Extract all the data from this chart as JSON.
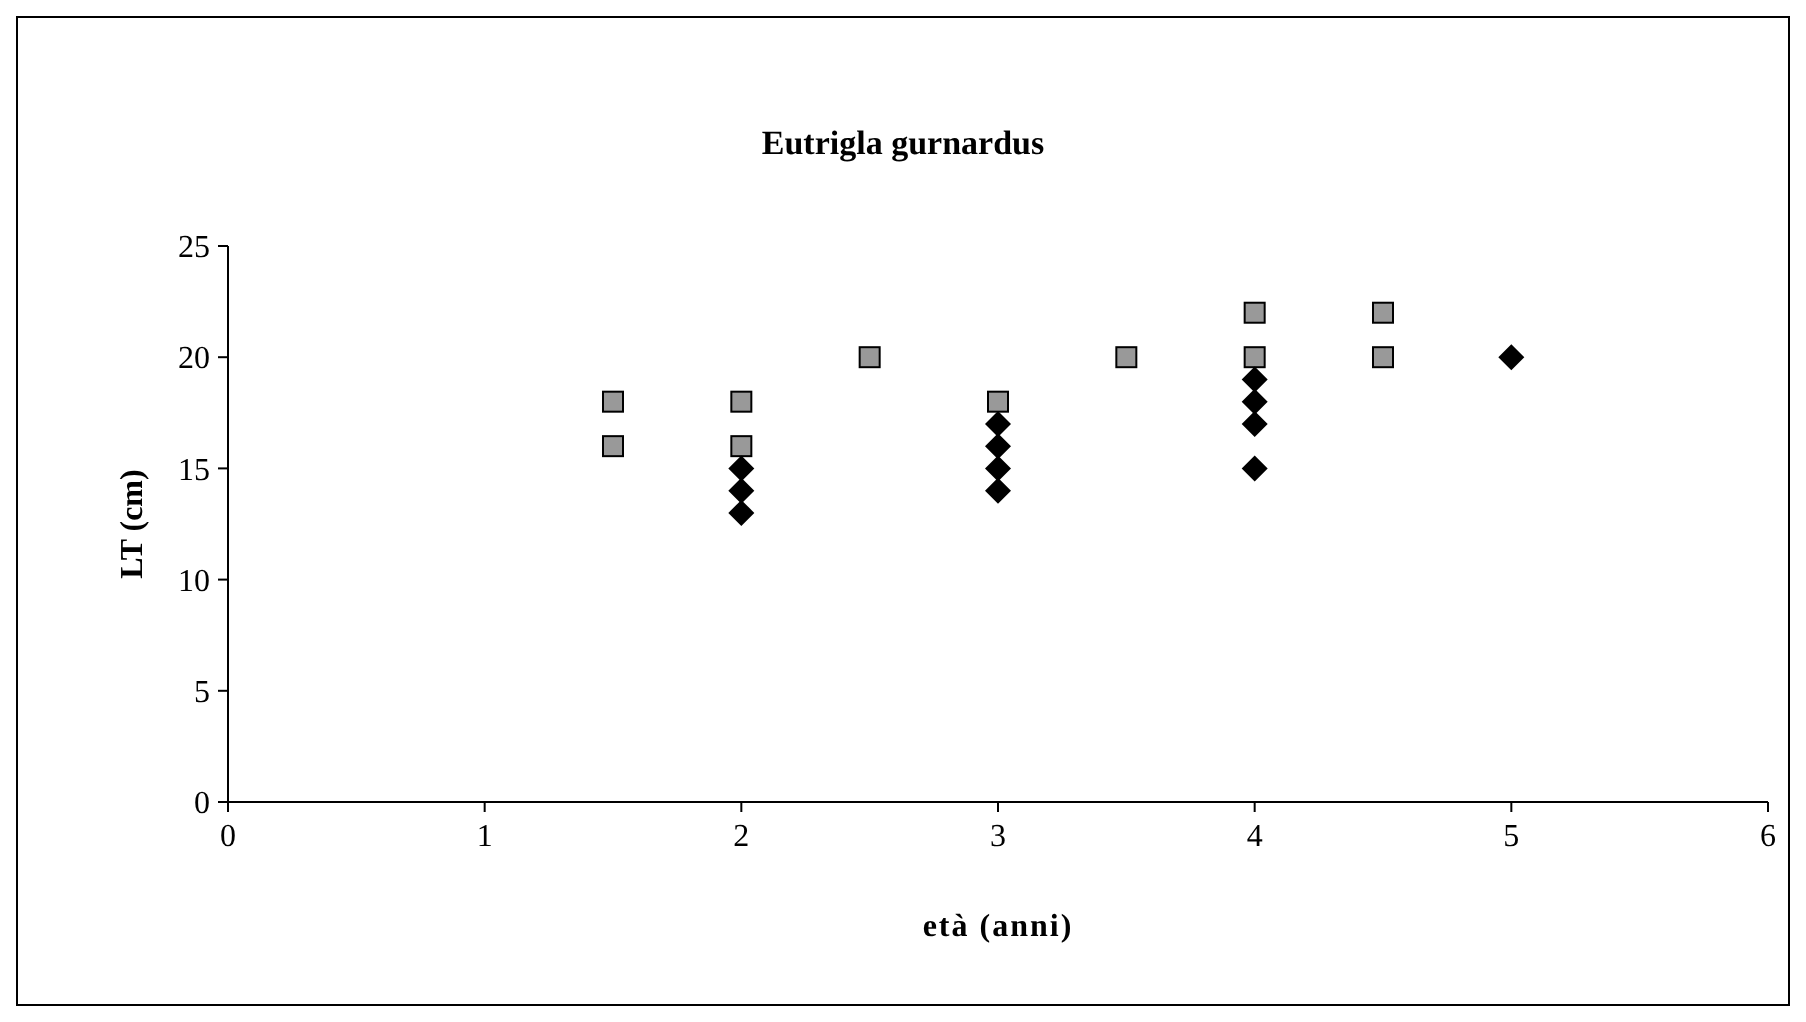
{
  "chart_data": {
    "type": "scatter",
    "title": "Eutrigla gurnardus",
    "xlabel": "età (anni)",
    "ylabel": "LT (cm)",
    "xlim": [
      0,
      6
    ],
    "xticks": [
      0,
      1,
      2,
      3,
      4,
      5,
      6
    ],
    "ylim": [
      0,
      25
    ],
    "yticks": [
      0,
      5,
      10,
      15,
      20,
      25
    ],
    "series": [
      {
        "color": "#999999",
        "marker": "square",
        "x": [
          1.5,
          1.5,
          2,
          2,
          2.5,
          3,
          3.5,
          4,
          4,
          4.5,
          4.5
        ],
        "values": [
          18,
          16,
          18,
          16,
          20,
          18,
          20,
          22,
          20,
          22,
          20
        ]
      },
      {
        "color": "#000000",
        "marker": "diamond",
        "x": [
          2,
          2,
          2,
          3,
          3,
          3,
          3,
          4,
          4,
          4,
          4,
          5
        ],
        "values": [
          15,
          14,
          13,
          17,
          16,
          15,
          14,
          19,
          18,
          17,
          15,
          20
        ]
      }
    ]
  }
}
